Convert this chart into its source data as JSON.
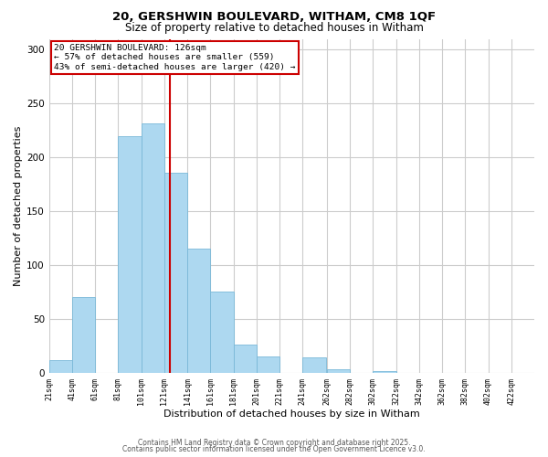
{
  "title_line1": "20, GERSHWIN BOULEVARD, WITHAM, CM8 1QF",
  "title_line2": "Size of property relative to detached houses in Witham",
  "xlabel": "Distribution of detached houses by size in Witham",
  "ylabel": "Number of detached properties",
  "annotation_line1": "20 GERSHWIN BOULEVARD: 126sqm",
  "annotation_line2": "← 57% of detached houses are smaller (559)",
  "annotation_line3": "43% of semi-detached houses are larger (420) →",
  "vline_x": 126,
  "bar_color": "#add8f0",
  "bar_edge_color": "#7ab8d8",
  "vline_color": "#cc0000",
  "annotation_box_edge_color": "#cc0000",
  "bins_left_edges": [
    21,
    41,
    61,
    81,
    101,
    121,
    141,
    161,
    181,
    201,
    221,
    241,
    262,
    282,
    302,
    322,
    342,
    362,
    382,
    402,
    422
  ],
  "bin_width": 20,
  "bar_heights": [
    12,
    71,
    0,
    220,
    232,
    186,
    116,
    76,
    27,
    16,
    0,
    15,
    4,
    0,
    2,
    0,
    0,
    0,
    0,
    0,
    0
  ],
  "ylim": [
    0,
    310
  ],
  "background_color": "#ffffff",
  "grid_color": "#cccccc",
  "footnote_line1": "Contains HM Land Registry data © Crown copyright and database right 2025.",
  "footnote_line2": "Contains public sector information licensed under the Open Government Licence v3.0."
}
